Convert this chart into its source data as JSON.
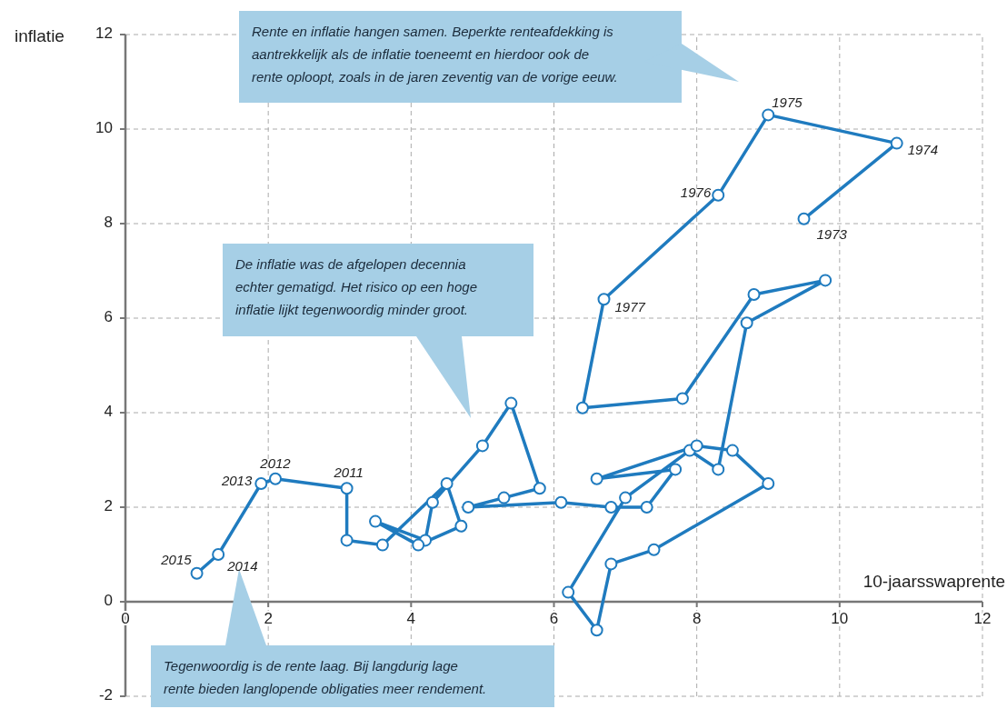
{
  "chart_data": {
    "type": "line",
    "xlabel": "10-jaarsswaprente",
    "ylabel": "inflatie",
    "xlim": [
      0,
      12
    ],
    "xticks": [
      0,
      2,
      4,
      6,
      8,
      10,
      12
    ],
    "ylim": [
      -2,
      12
    ],
    "yticks": [
      -2,
      0,
      2,
      4,
      6,
      8,
      10,
      12
    ],
    "grid": true,
    "marker": "circle",
    "line_style": "solid",
    "series": [
      {
        "color": "#1f7bbf",
        "x": [
          9.5,
          10.8,
          9.0,
          8.3,
          6.7,
          6.4,
          7.8,
          8.8,
          9.8,
          8.7,
          8.3,
          7.9,
          7.0,
          6.2,
          6.6,
          6.8,
          7.4,
          9.0,
          8.5,
          8.0,
          6.6,
          7.7,
          7.3,
          6.8,
          6.1,
          4.8,
          5.3,
          5.8,
          5.4,
          5.0,
          4.3,
          4.2,
          3.5,
          4.1,
          4.7,
          4.5,
          3.6,
          3.1,
          3.1,
          2.1,
          1.9,
          1.3,
          1.0
        ],
        "values": [
          8.1,
          9.7,
          10.3,
          8.6,
          6.4,
          4.1,
          4.3,
          6.5,
          6.8,
          5.9,
          2.8,
          3.2,
          2.2,
          0.2,
          -0.6,
          0.8,
          1.1,
          2.5,
          3.2,
          3.3,
          2.6,
          2.8,
          2.0,
          2.0,
          2.1,
          2.0,
          2.2,
          2.4,
          4.2,
          3.3,
          2.1,
          1.3,
          1.7,
          1.2,
          1.6,
          2.5,
          1.2,
          1.3,
          2.4,
          2.6,
          2.5,
          1.0,
          0.6
        ],
        "name": null
      }
    ],
    "annotations": [
      "Rente en inflatie hangen samen. Beperkte renteafdekking is aantrekkelijk als de inflatie toeneemt en hierdoor ook de rente oploopt, zoals in de jaren zeventig van de vorige eeuw.",
      "De inflatie was de afgelopen decennia echter gematigd. Het risico op een hoge inflatie lijkt tegenwoordig minder groot.",
      "Tegenwoordig is de rente laag. Bij langdurig lage rente bieden langlopende obligaties meer rendement.",
      {
        "text": "1973",
        "x": 9.5,
        "y": 8.1
      },
      {
        "text": "1974",
        "x": 10.8,
        "y": 9.7
      },
      {
        "text": "1975",
        "x": 9.0,
        "y": 10.3
      },
      {
        "text": "1976",
        "x": 8.3,
        "y": 8.6
      },
      {
        "text": "1977",
        "x": 6.7,
        "y": 6.4
      },
      {
        "text": "2011",
        "x": 3.1,
        "y": 2.4
      },
      {
        "text": "2012",
        "x": 2.1,
        "y": 2.6
      },
      {
        "text": "2013",
        "x": 1.9,
        "y": 2.5
      },
      {
        "text": "2014",
        "x": 1.3,
        "y": 1.0
      },
      {
        "text": "2015",
        "x": 1.0,
        "y": 0.6
      }
    ]
  }
}
